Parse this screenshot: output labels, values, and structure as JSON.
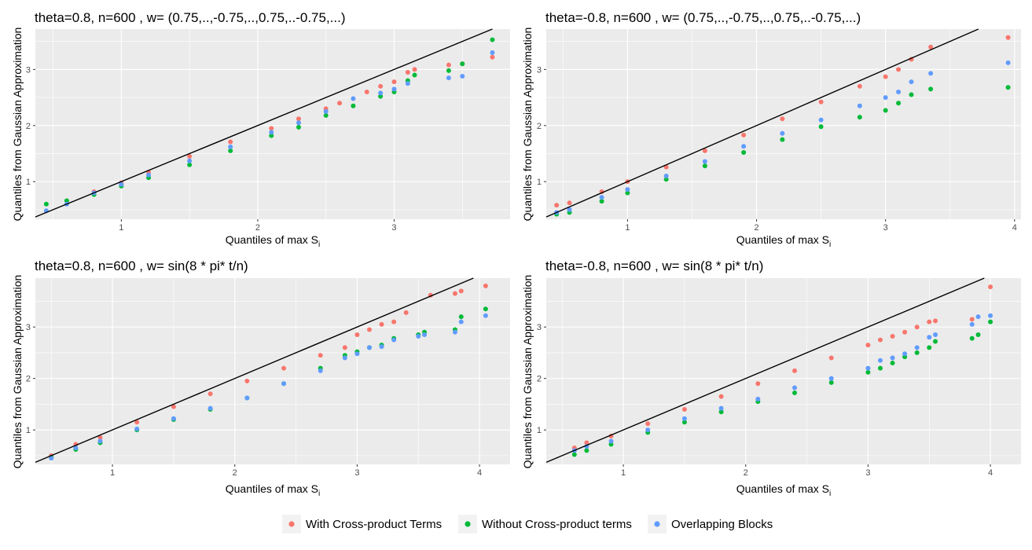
{
  "legend": {
    "items": [
      {
        "label": "With Cross-product Terms",
        "color": "#F8766D"
      },
      {
        "label": "Without Cross-product terms",
        "color": "#00BA38"
      },
      {
        "label": "Overlapping Blocks",
        "color": "#619CFF"
      }
    ]
  },
  "chart_data": [
    {
      "type": "scatter",
      "title": "theta=0.8, n=600 , w= (0.75,..,-0.75,..,0.75,..-0.75,...)",
      "xlabel": "Quantiles of max S",
      "xlabel_sub": "i",
      "ylabel": "Quantiles from Gaussian Approximation",
      "xlim": [
        0.37,
        3.85
      ],
      "ylim": [
        0.33,
        3.72
      ],
      "xticks": [
        1,
        2,
        3
      ],
      "yticks": [
        1,
        2,
        3
      ],
      "reference_line": {
        "slope": 1,
        "intercept": 0
      },
      "series": [
        {
          "name": "With Cross-product Terms",
          "x": [
            0.6,
            0.8,
            1.0,
            1.2,
            1.5,
            1.8,
            2.1,
            2.3,
            2.5,
            2.6,
            2.8,
            2.9,
            3.0,
            3.1,
            3.15,
            3.4,
            3.5,
            3.72
          ],
          "y": [
            0.66,
            0.82,
            0.98,
            1.17,
            1.45,
            1.71,
            1.95,
            2.12,
            2.3,
            2.4,
            2.6,
            2.7,
            2.78,
            2.95,
            3.0,
            3.08,
            3.1,
            3.22
          ]
        },
        {
          "name": "Without Cross-product terms",
          "x": [
            0.45,
            0.6,
            0.8,
            1.0,
            1.2,
            1.5,
            1.8,
            2.1,
            2.3,
            2.5,
            2.7,
            2.9,
            3.0,
            3.1,
            3.15,
            3.4,
            3.5,
            3.72
          ],
          "y": [
            0.6,
            0.66,
            0.77,
            0.92,
            1.07,
            1.3,
            1.55,
            1.82,
            1.97,
            2.18,
            2.35,
            2.52,
            2.6,
            2.8,
            2.9,
            2.98,
            3.1,
            3.53
          ]
        },
        {
          "name": "Overlapping Blocks",
          "x": [
            0.45,
            0.6,
            0.8,
            1.0,
            1.2,
            1.5,
            1.8,
            2.1,
            2.3,
            2.5,
            2.7,
            2.9,
            3.0,
            3.1,
            3.4,
            3.5,
            3.72
          ],
          "y": [
            0.48,
            0.6,
            0.8,
            0.95,
            1.12,
            1.37,
            1.62,
            1.88,
            2.05,
            2.25,
            2.48,
            2.58,
            2.65,
            2.75,
            2.85,
            2.88,
            3.3
          ]
        }
      ]
    },
    {
      "type": "scatter",
      "title": "theta=-0.8, n=600 , w= (0.75,..,-0.75,..,0.75,..-0.75,...)",
      "xlabel": "Quantiles of max S",
      "xlabel_sub": "i",
      "ylabel": "Quantiles from Gaussian Approximation",
      "xlim": [
        0.37,
        4.05
      ],
      "ylim": [
        0.33,
        3.72
      ],
      "xticks": [
        1,
        2,
        3,
        4
      ],
      "yticks": [
        1,
        2,
        3
      ],
      "reference_line": {
        "slope": 1,
        "intercept": 0
      },
      "series": [
        {
          "name": "With Cross-product Terms",
          "x": [
            0.45,
            0.55,
            0.8,
            1.0,
            1.3,
            1.6,
            1.9,
            2.2,
            2.5,
            2.8,
            3.0,
            3.1,
            3.2,
            3.35,
            3.95
          ],
          "y": [
            0.58,
            0.62,
            0.82,
            1.0,
            1.26,
            1.55,
            1.83,
            2.12,
            2.42,
            2.7,
            2.87,
            3.0,
            3.18,
            3.4,
            3.57
          ]
        },
        {
          "name": "Without Cross-product terms",
          "x": [
            0.45,
            0.55,
            0.8,
            1.0,
            1.3,
            1.6,
            1.9,
            2.2,
            2.5,
            2.8,
            3.0,
            3.1,
            3.2,
            3.35,
            3.95
          ],
          "y": [
            0.42,
            0.45,
            0.65,
            0.8,
            1.04,
            1.28,
            1.52,
            1.75,
            1.98,
            2.15,
            2.27,
            2.4,
            2.55,
            2.65,
            2.68
          ]
        },
        {
          "name": "Overlapping Blocks",
          "x": [
            0.45,
            0.55,
            0.8,
            1.0,
            1.3,
            1.6,
            1.9,
            2.2,
            2.5,
            2.8,
            3.0,
            3.1,
            3.2,
            3.35,
            3.95
          ],
          "y": [
            0.45,
            0.5,
            0.72,
            0.86,
            1.1,
            1.36,
            1.63,
            1.86,
            2.1,
            2.35,
            2.5,
            2.6,
            2.78,
            2.93,
            3.12
          ]
        }
      ]
    },
    {
      "type": "scatter",
      "title": "theta=0.8, n=600 , w= sin(8 * pi* t/n)",
      "xlabel": "Quantiles of max S",
      "xlabel_sub": "i",
      "ylabel": "Quantiles from Gaussian Approximation",
      "xlim": [
        0.37,
        4.25
      ],
      "ylim": [
        0.33,
        3.95
      ],
      "xticks": [
        1,
        2,
        3,
        4
      ],
      "yticks": [
        1,
        2,
        3
      ],
      "reference_line": {
        "slope": 1,
        "intercept": 0
      },
      "series": [
        {
          "name": "With Cross-product Terms",
          "x": [
            0.5,
            0.7,
            0.9,
            1.2,
            1.5,
            1.8,
            2.1,
            2.4,
            2.7,
            2.9,
            3.0,
            3.1,
            3.2,
            3.3,
            3.4,
            3.6,
            3.8,
            3.85,
            4.05
          ],
          "y": [
            0.5,
            0.72,
            0.85,
            1.15,
            1.45,
            1.7,
            1.95,
            2.2,
            2.45,
            2.6,
            2.85,
            2.95,
            3.05,
            3.1,
            3.28,
            3.62,
            3.65,
            3.7,
            3.8
          ]
        },
        {
          "name": "Without Cross-product terms",
          "x": [
            0.5,
            0.7,
            0.9,
            1.2,
            1.5,
            1.8,
            2.1,
            2.4,
            2.7,
            2.9,
            3.0,
            3.1,
            3.2,
            3.3,
            3.5,
            3.55,
            3.8,
            3.85,
            4.05
          ],
          "y": [
            0.47,
            0.62,
            0.75,
            1.0,
            1.2,
            1.4,
            1.62,
            1.9,
            2.2,
            2.45,
            2.52,
            2.6,
            2.65,
            2.78,
            2.85,
            2.9,
            2.95,
            3.2,
            3.35
          ]
        },
        {
          "name": "Overlapping Blocks",
          "x": [
            0.5,
            0.7,
            0.9,
            1.2,
            1.5,
            1.8,
            2.1,
            2.4,
            2.7,
            2.9,
            3.0,
            3.1,
            3.2,
            3.3,
            3.5,
            3.55,
            3.8,
            3.85,
            4.05
          ],
          "y": [
            0.45,
            0.65,
            0.78,
            1.02,
            1.22,
            1.42,
            1.62,
            1.9,
            2.15,
            2.4,
            2.48,
            2.6,
            2.62,
            2.75,
            2.82,
            2.85,
            2.9,
            3.1,
            3.22
          ]
        }
      ]
    },
    {
      "type": "scatter",
      "title": "theta=-0.8, n=600 , w= sin(8 * pi* t/n)",
      "xlabel": "Quantiles of max S",
      "xlabel_sub": "i",
      "ylabel": "Quantiles from Gaussian Approximation",
      "xlim": [
        0.37,
        4.25
      ],
      "ylim": [
        0.33,
        3.95
      ],
      "xticks": [
        1,
        2,
        3,
        4
      ],
      "yticks": [
        1,
        2,
        3
      ],
      "reference_line": {
        "slope": 1,
        "intercept": 0
      },
      "series": [
        {
          "name": "With Cross-product Terms",
          "x": [
            0.6,
            0.7,
            0.9,
            1.2,
            1.5,
            1.8,
            2.1,
            2.4,
            2.7,
            3.0,
            3.1,
            3.2,
            3.3,
            3.4,
            3.5,
            3.55,
            3.85,
            4.0
          ],
          "y": [
            0.65,
            0.75,
            0.88,
            1.12,
            1.4,
            1.65,
            1.9,
            2.15,
            2.4,
            2.65,
            2.75,
            2.82,
            2.9,
            3.0,
            3.1,
            3.12,
            3.15,
            3.78
          ]
        },
        {
          "name": "Without Cross-product terms",
          "x": [
            0.6,
            0.7,
            0.9,
            1.2,
            1.5,
            1.8,
            2.1,
            2.4,
            2.7,
            3.0,
            3.1,
            3.2,
            3.3,
            3.4,
            3.5,
            3.55,
            3.85,
            3.9,
            4.0
          ],
          "y": [
            0.52,
            0.6,
            0.72,
            0.95,
            1.15,
            1.35,
            1.55,
            1.72,
            1.92,
            2.12,
            2.2,
            2.3,
            2.42,
            2.5,
            2.6,
            2.72,
            2.78,
            2.85,
            3.1
          ]
        },
        {
          "name": "Overlapping Blocks",
          "x": [
            0.6,
            0.7,
            0.9,
            1.2,
            1.5,
            1.8,
            2.1,
            2.4,
            2.7,
            3.0,
            3.1,
            3.2,
            3.3,
            3.4,
            3.5,
            3.55,
            3.85,
            3.9,
            4.0
          ],
          "y": [
            0.6,
            0.68,
            0.78,
            1.0,
            1.22,
            1.42,
            1.6,
            1.82,
            2.0,
            2.2,
            2.35,
            2.4,
            2.48,
            2.6,
            2.8,
            2.85,
            3.05,
            3.2,
            3.22
          ]
        }
      ]
    }
  ]
}
